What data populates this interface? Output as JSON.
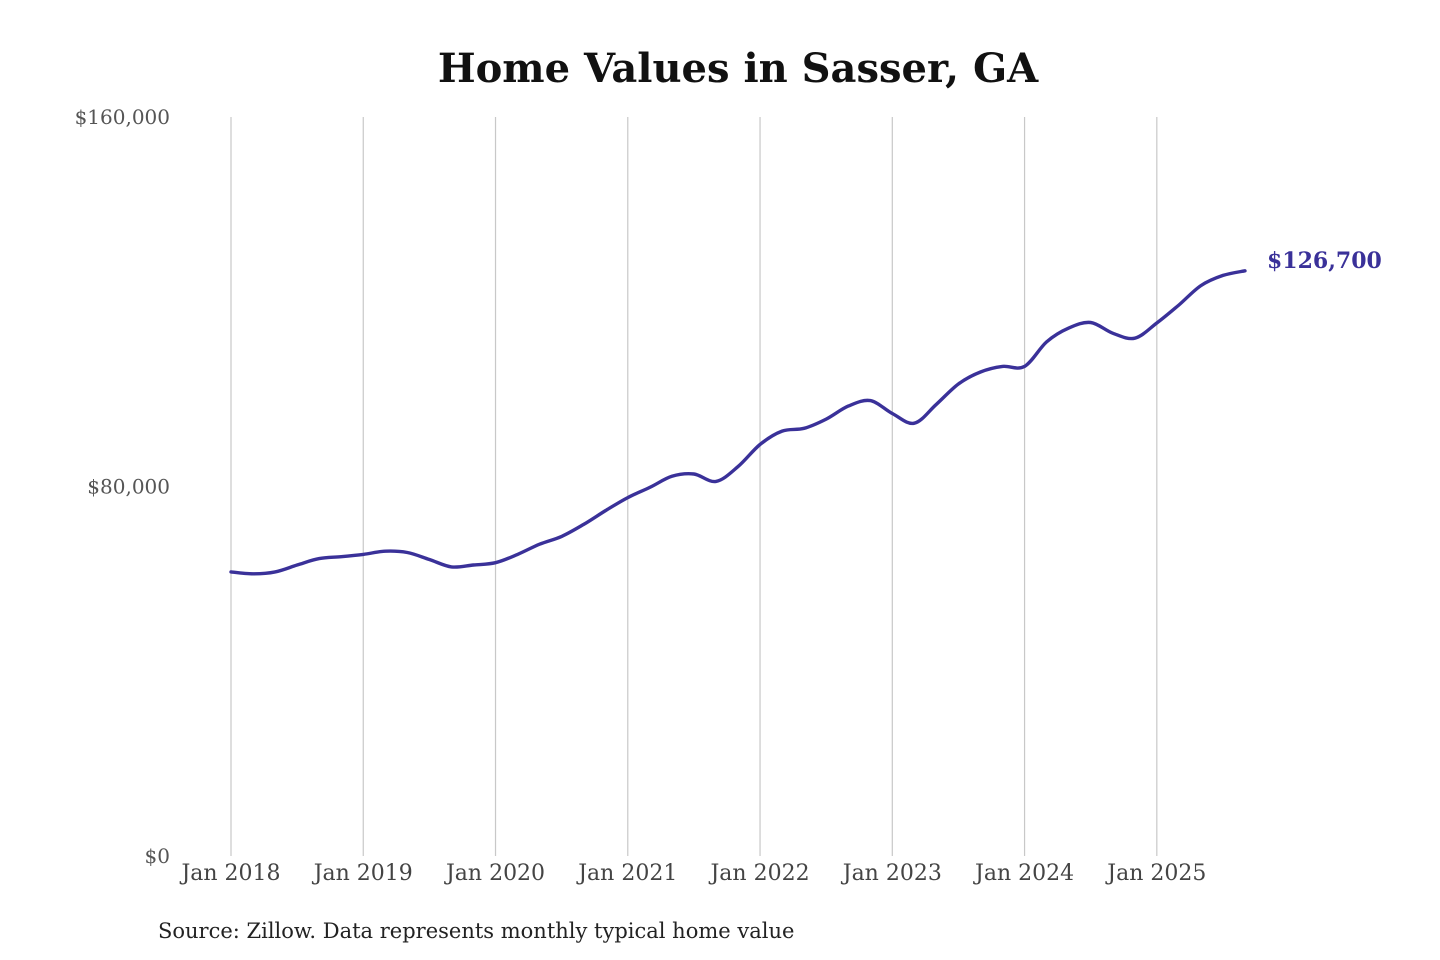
{
  "chart_data": {
    "type": "line",
    "title": "Home Values in Sasser, GA",
    "xlabel": "",
    "ylabel": "",
    "ylim": [
      0,
      160000
    ],
    "ytick_values": [
      0,
      80000,
      160000
    ],
    "ytick_labels": [
      "$0",
      "$80,000",
      "$160,000"
    ],
    "xtick_labels": [
      "Jan 2018",
      "Jan 2019",
      "Jan 2020",
      "Jan 2021",
      "Jan 2022",
      "Jan 2023",
      "Jan 2024",
      "Jan 2025"
    ],
    "xtick_values": [
      "2018-01",
      "2019-01",
      "2020-01",
      "2021-01",
      "2022-01",
      "2023-01",
      "2024-01",
      "2025-01"
    ],
    "xlim": [
      "2018-01",
      "2025-09"
    ],
    "grid": "vertical",
    "legend": "none",
    "line_color": "#3a3199",
    "end_label": "$126,700",
    "series": [
      {
        "x": [
          "2018-01",
          "2018-03",
          "2018-05",
          "2018-07",
          "2018-09",
          "2018-11",
          "2019-01",
          "2019-03",
          "2019-05",
          "2019-07",
          "2019-09",
          "2019-11",
          "2020-01",
          "2020-03",
          "2020-05",
          "2020-07",
          "2020-09",
          "2020-11",
          "2021-01",
          "2021-03",
          "2021-05",
          "2021-07",
          "2021-09",
          "2021-11",
          "2022-01",
          "2022-03",
          "2022-05",
          "2022-07",
          "2022-09",
          "2022-11",
          "2023-01",
          "2023-03",
          "2023-05",
          "2023-07",
          "2023-09",
          "2023-11",
          "2024-01",
          "2024-03",
          "2024-05",
          "2024-07",
          "2024-09",
          "2024-11",
          "2025-01",
          "2025-03",
          "2025-05",
          "2025-07",
          "2025-09"
        ],
        "y": [
          61500,
          61100,
          61500,
          63000,
          64400,
          64800,
          65300,
          66000,
          65700,
          64200,
          62600,
          63000,
          63500,
          65300,
          67500,
          69200,
          71800,
          74800,
          77600,
          79800,
          82200,
          82700,
          81100,
          84300,
          89100,
          92000,
          92600,
          94600,
          97400,
          98600,
          95800,
          93700,
          97800,
          102200,
          104800,
          106000,
          106000,
          111300,
          114300,
          115500,
          113200,
          112100,
          115400,
          119300,
          123500,
          125700,
          126700
        ]
      }
    ],
    "source": "Source: Zillow. Data represents monthly typical home value"
  }
}
